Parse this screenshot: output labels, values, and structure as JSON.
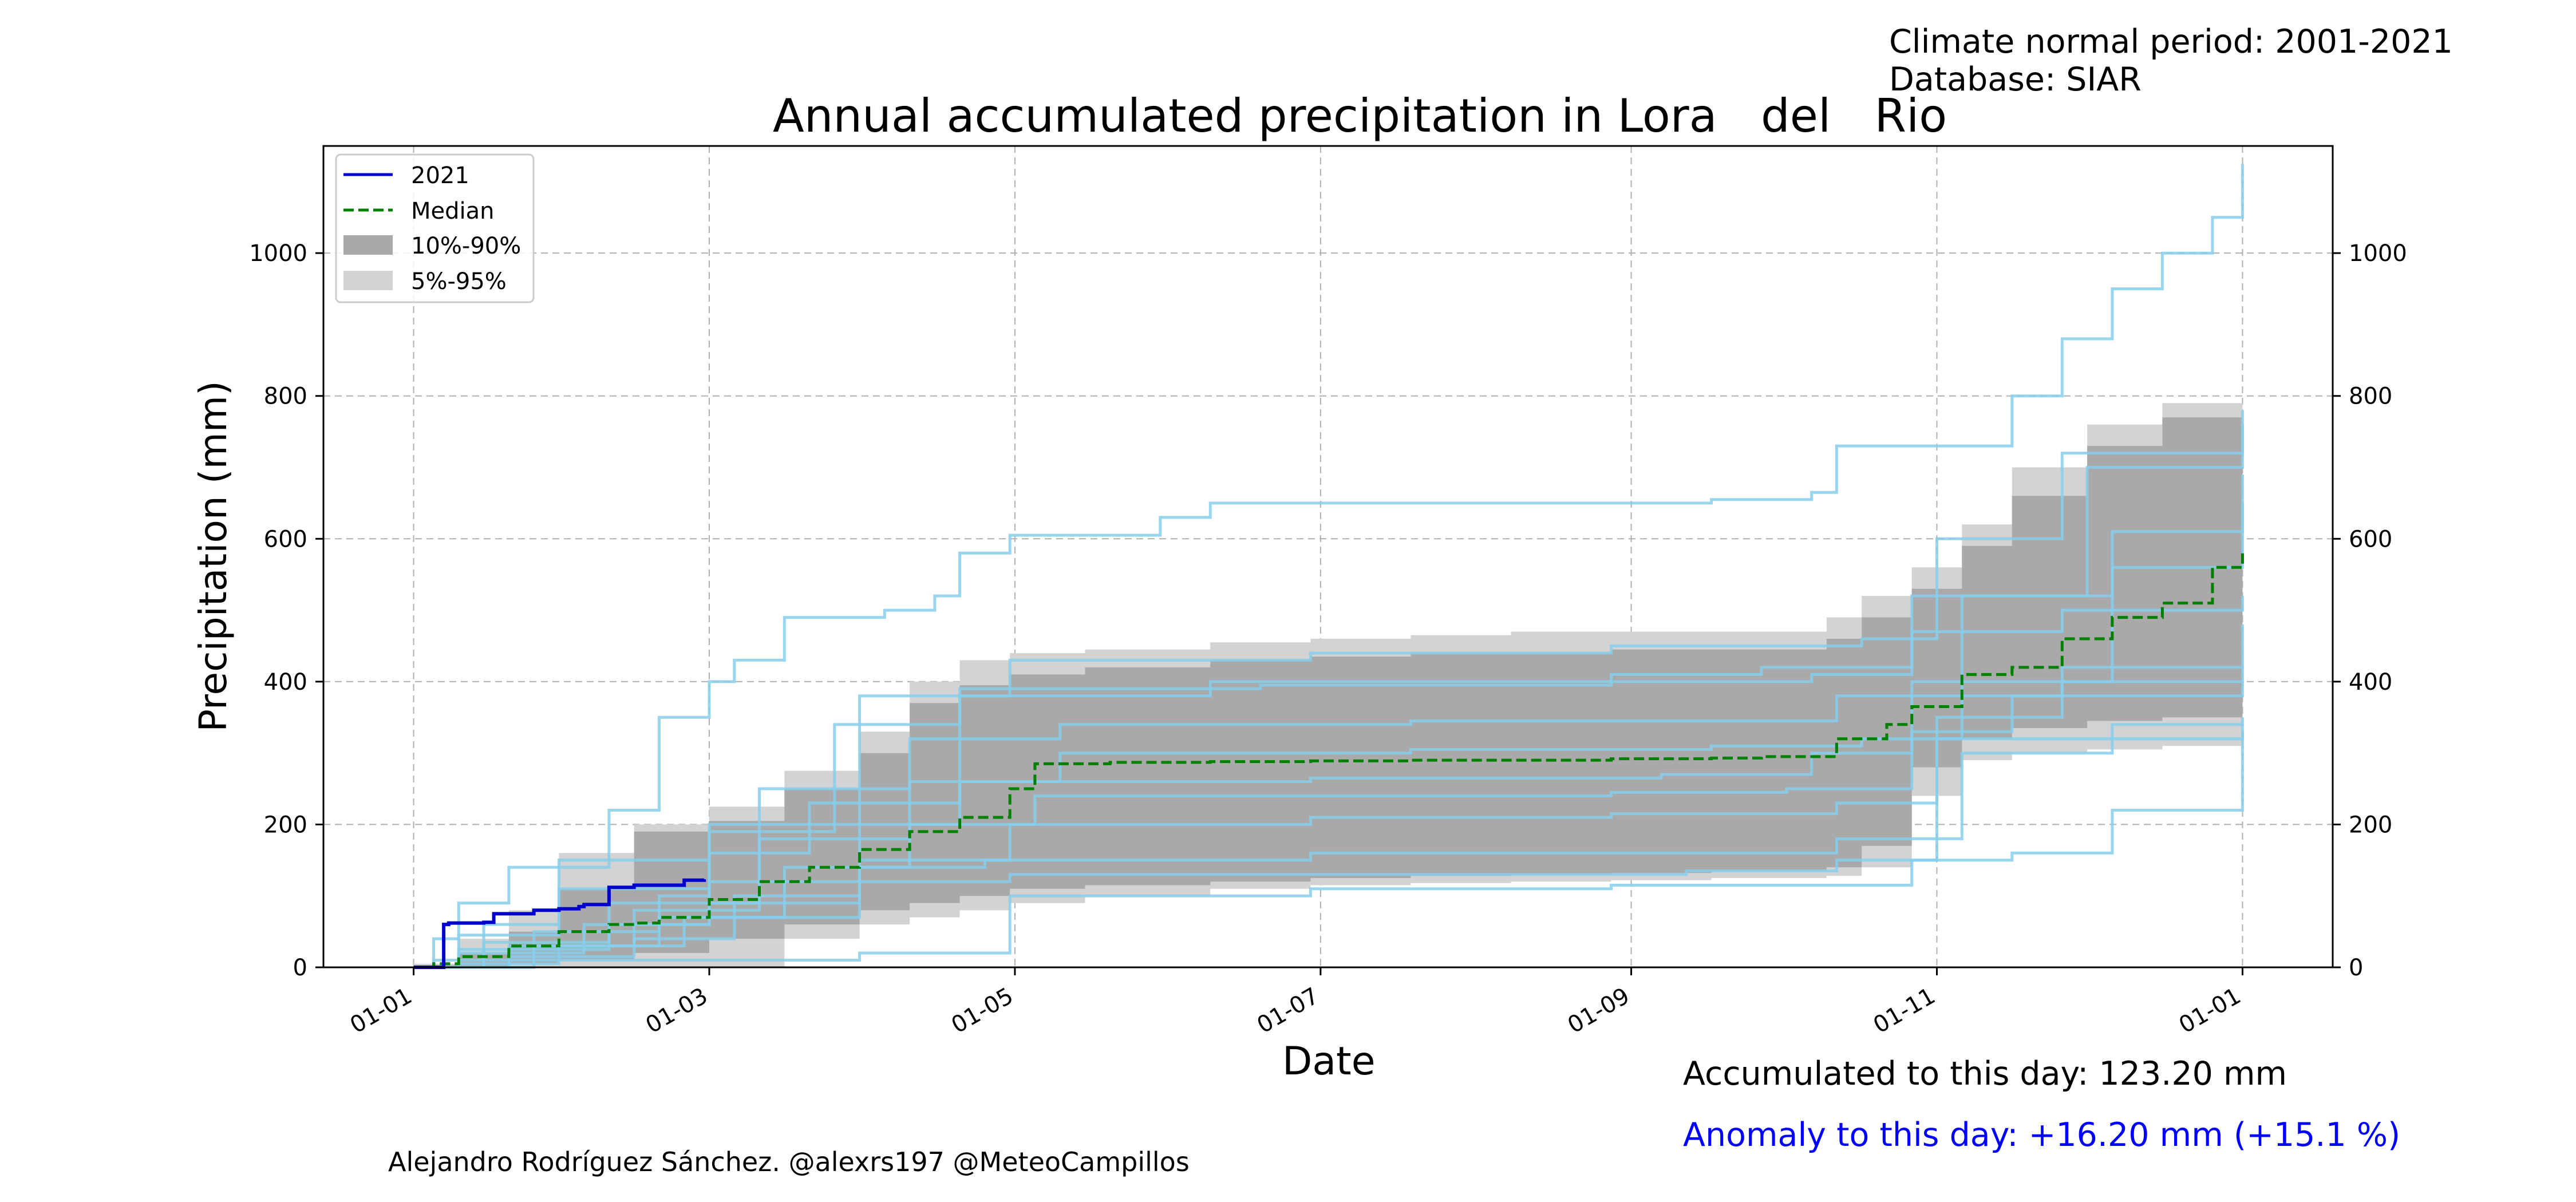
{
  "meta": {
    "period": "Climate normal period: 2001-2021",
    "database": "Database: SIAR"
  },
  "footer": {
    "accumulated": "Accumulated to this day: 123.20 mm",
    "anomaly": "Anomaly to this day: +16.20 mm (+15.1 %)",
    "anomaly_color": "#0000ff",
    "credit": "Alejandro Rodríguez Sánchez. @alexrs197 @MeteoCampillos"
  },
  "colors": {
    "current_year": "#0000cd",
    "median": "#008000",
    "band_10_90": "#a9a9a9",
    "band_5_95": "#d3d3d3",
    "historical_years": "#87ceeb"
  },
  "chart_data": {
    "type": "line",
    "title": "Annual accumulated precipitation in Lora   del   Rio",
    "xlabel": "Date",
    "ylabel": "Precipitation (mm)",
    "x_ticks": [
      "01-01",
      "01-03",
      "01-05",
      "01-07",
      "01-09",
      "01-11",
      "01-01"
    ],
    "x_tick_days": [
      1,
      60,
      121,
      182,
      244,
      305,
      366
    ],
    "y_ticks": [
      0,
      200,
      400,
      600,
      800,
      1000
    ],
    "xlim": [
      -17,
      384
    ],
    "ylim": [
      0,
      1150
    ],
    "grid": true,
    "legend_position": "upper-left",
    "legend": [
      "2021",
      "Median",
      "10%-90%",
      "5%-95%"
    ],
    "band_5_95": {
      "x": [
        1,
        10,
        20,
        30,
        45,
        60,
        75,
        90,
        100,
        110,
        120,
        135,
        160,
        180,
        200,
        220,
        240,
        260,
        275,
        283,
        290,
        300,
        310,
        320,
        335,
        350,
        366
      ],
      "lower": [
        0,
        0,
        0,
        0,
        0,
        0,
        40,
        60,
        70,
        80,
        90,
        100,
        110,
        115,
        118,
        120,
        122,
        125,
        125,
        128,
        140,
        240,
        290,
        300,
        305,
        310,
        330
      ],
      "upper": [
        5,
        40,
        80,
        160,
        200,
        225,
        275,
        330,
        400,
        430,
        440,
        445,
        455,
        460,
        465,
        470,
        470,
        470,
        470,
        490,
        520,
        560,
        620,
        700,
        760,
        790,
        790
      ]
    },
    "band_10_90": {
      "x": [
        1,
        10,
        20,
        30,
        45,
        60,
        75,
        90,
        100,
        110,
        120,
        135,
        160,
        180,
        200,
        220,
        240,
        260,
        275,
        283,
        290,
        300,
        310,
        320,
        335,
        350,
        366
      ],
      "lower": [
        0,
        0,
        5,
        10,
        20,
        40,
        60,
        80,
        90,
        100,
        110,
        115,
        120,
        125,
        128,
        130,
        132,
        135,
        135,
        140,
        170,
        280,
        320,
        335,
        345,
        350,
        360
      ],
      "upper": [
        3,
        20,
        50,
        110,
        190,
        205,
        250,
        300,
        370,
        395,
        410,
        420,
        430,
        435,
        440,
        440,
        445,
        445,
        445,
        460,
        490,
        530,
        590,
        660,
        730,
        770,
        775
      ]
    },
    "series": [
      {
        "name": "2021",
        "x": [
          1,
          5,
          7,
          8,
          15,
          17,
          25,
          30,
          34,
          35,
          40,
          45,
          55,
          59
        ],
        "y": [
          0,
          0,
          60,
          62,
          63,
          75,
          80,
          82,
          85,
          88,
          112,
          115,
          122,
          123.2
        ]
      },
      {
        "name": "Median",
        "x": [
          1,
          5,
          10,
          20,
          30,
          40,
          45,
          50,
          60,
          70,
          80,
          90,
          100,
          110,
          120,
          125,
          140,
          160,
          180,
          200,
          220,
          240,
          260,
          270,
          280,
          285,
          295,
          300,
          310,
          320,
          330,
          340,
          350,
          360,
          366
        ],
        "y": [
          0,
          5,
          15,
          30,
          50,
          60,
          62,
          70,
          95,
          120,
          140,
          165,
          190,
          210,
          250,
          285,
          287,
          288,
          289,
          290,
          290,
          292,
          293,
          295,
          295,
          320,
          340,
          365,
          410,
          420,
          460,
          490,
          510,
          560,
          580
        ]
      }
    ],
    "historical_years": [
      {
        "x": [
          1,
          5,
          10,
          20,
          40,
          50,
          60,
          65,
          75,
          95,
          105,
          110,
          120,
          150,
          160,
          260,
          280,
          285,
          305,
          320,
          330,
          340,
          350,
          360,
          366
        ],
        "y": [
          0,
          40,
          90,
          140,
          220,
          350,
          400,
          430,
          490,
          500,
          520,
          580,
          605,
          630,
          650,
          655,
          665,
          730,
          730,
          800,
          880,
          950,
          1000,
          1050,
          1125
        ]
      },
      {
        "x": [
          1,
          10,
          30,
          60,
          90,
          120,
          180,
          240,
          300,
          320,
          340,
          366
        ],
        "y": [
          0,
          5,
          10,
          10,
          20,
          100,
          110,
          115,
          150,
          160,
          220,
          340
        ]
      },
      {
        "x": [
          1,
          15,
          30,
          60,
          90,
          120,
          180,
          240,
          290,
          305,
          330,
          366
        ],
        "y": [
          0,
          60,
          150,
          200,
          380,
          430,
          440,
          450,
          460,
          600,
          720,
          760
        ]
      },
      {
        "x": [
          1,
          20,
          45,
          70,
          100,
          130,
          200,
          260,
          285,
          310,
          340,
          366
        ],
        "y": [
          0,
          30,
          80,
          250,
          320,
          340,
          345,
          345,
          380,
          520,
          610,
          650
        ]
      },
      {
        "x": [
          1,
          10,
          40,
          60,
          90,
          110,
          180,
          250,
          280,
          300,
          340,
          366
        ],
        "y": [
          0,
          25,
          60,
          120,
          200,
          260,
          265,
          270,
          300,
          400,
          560,
          690
        ]
      },
      {
        "x": [
          1,
          25,
          50,
          60,
          80,
          110,
          160,
          240,
          270,
          300,
          330,
          366
        ],
        "y": [
          0,
          50,
          100,
          160,
          230,
          380,
          400,
          410,
          420,
          470,
          500,
          520
        ]
      },
      {
        "x": [
          1,
          5,
          30,
          55,
          90,
          120,
          180,
          240,
          285,
          305,
          330,
          366
        ],
        "y": [
          0,
          10,
          30,
          70,
          150,
          200,
          210,
          215,
          230,
          350,
          420,
          480
        ]
      },
      {
        "x": [
          1,
          15,
          40,
          70,
          100,
          130,
          200,
          260,
          290,
          310,
          330,
          366
        ],
        "y": [
          0,
          35,
          90,
          180,
          260,
          300,
          305,
          310,
          320,
          380,
          400,
          420
        ]
      },
      {
        "x": [
          1,
          20,
          45,
          65,
          90,
          115,
          180,
          250,
          285,
          310,
          340,
          366
        ],
        "y": [
          0,
          15,
          40,
          100,
          140,
          150,
          160,
          160,
          180,
          300,
          320,
          330
        ]
      },
      {
        "x": [
          1,
          10,
          30,
          60,
          85,
          110,
          170,
          240,
          280,
          300,
          335,
          366
        ],
        "y": [
          0,
          45,
          110,
          190,
          340,
          390,
          395,
          400,
          410,
          520,
          700,
          780
        ]
      },
      {
        "x": [
          1,
          25,
          50,
          75,
          100,
          125,
          180,
          240,
          275,
          300,
          320,
          366
        ],
        "y": [
          0,
          30,
          70,
          140,
          200,
          240,
          240,
          245,
          250,
          330,
          380,
          400
        ]
      },
      {
        "x": [
          1,
          10,
          35,
          60,
          90,
          120,
          190,
          255,
          285,
          305,
          340,
          366
        ],
        "y": [
          0,
          20,
          60,
          90,
          120,
          130,
          130,
          135,
          150,
          320,
          340,
          350
        ]
      }
    ]
  }
}
